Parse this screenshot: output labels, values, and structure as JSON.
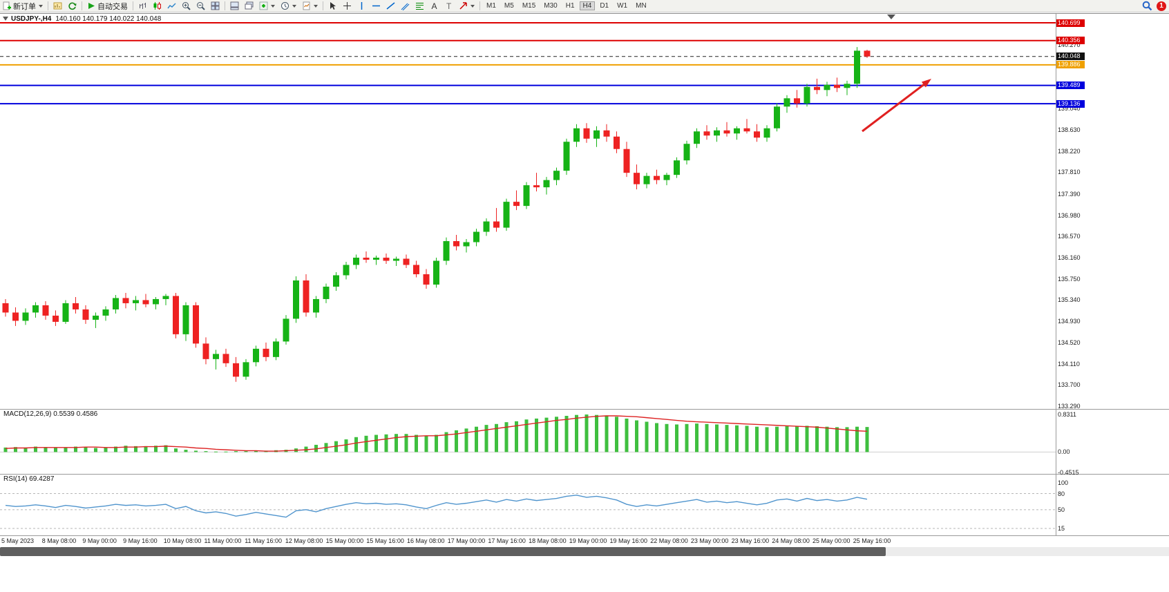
{
  "toolbar": {
    "new_order_label": "新订单",
    "auto_trading_label": "自动交易",
    "timeframes": [
      "M1",
      "M5",
      "M15",
      "M30",
      "H1",
      "H4",
      "D1",
      "W1",
      "MN"
    ],
    "active_timeframe": "H4",
    "notification_count": "1",
    "icon_names": [
      "new-order-icon",
      "new-chart-icon",
      "refresh-icon",
      "auto-trading-icon",
      "bar-chart-icon",
      "candlestick-chart-icon",
      "line-chart-icon",
      "zoom-in-icon",
      "zoom-out-icon",
      "tile-windows-icon",
      "arrange-windows-icon",
      "cascade-windows-icon",
      "indicators-icon",
      "periods-icon",
      "templates-icon",
      "cursor-icon",
      "crosshair-icon",
      "vertical-line-icon",
      "horizontal-line-icon",
      "trendline-icon",
      "channel-icon",
      "fibonacci-icon",
      "text-icon",
      "label-icon",
      "arrow-tool-icon",
      "search-icon",
      "notification-badge"
    ]
  },
  "chart": {
    "symbol_period": "USDJPY-,H4",
    "ohlc_text": "140.160 140.179 140.022 140.048",
    "price_axis_labels": [
      "140.270",
      "139.040",
      "138.630",
      "138.220",
      "137.810",
      "137.390",
      "136.980",
      "136.570",
      "136.160",
      "135.750",
      "135.340",
      "134.930",
      "134.520",
      "134.110",
      "133.700",
      "133.290"
    ],
    "level_lines": [
      {
        "price": "140.699",
        "color": "#dd0000",
        "style": "solid"
      },
      {
        "price": "140.356",
        "color": "#dd0000",
        "style": "solid"
      },
      {
        "price": "140.048",
        "color": "#222222",
        "style": "dashed",
        "role": "current-price"
      },
      {
        "price": "139.886",
        "color": "#efa000",
        "style": "solid"
      },
      {
        "price": "139.489",
        "color": "#0000dd",
        "style": "solid"
      },
      {
        "price": "139.136",
        "color": "#0000dd",
        "style": "solid"
      }
    ],
    "colors": {
      "up": "#16b316",
      "down": "#ee2222",
      "background": "#ffffff",
      "axis_text": "#1a1a1a"
    },
    "candles": [
      [
        135.28,
        135.36,
        135.02,
        135.1
      ],
      [
        135.1,
        135.2,
        134.84,
        134.94
      ],
      [
        134.94,
        135.18,
        134.86,
        135.1
      ],
      [
        135.1,
        135.3,
        135.0,
        135.24
      ],
      [
        135.24,
        135.32,
        134.96,
        135.04
      ],
      [
        135.04,
        135.14,
        134.84,
        134.92
      ],
      [
        134.92,
        135.34,
        134.88,
        135.28
      ],
      [
        135.28,
        135.4,
        135.08,
        135.16
      ],
      [
        135.16,
        135.24,
        134.88,
        134.96
      ],
      [
        134.96,
        135.1,
        134.8,
        135.04
      ],
      [
        135.04,
        135.22,
        134.94,
        135.16
      ],
      [
        135.16,
        135.44,
        135.08,
        135.38
      ],
      [
        135.38,
        135.48,
        135.18,
        135.28
      ],
      [
        135.28,
        135.42,
        135.14,
        135.34
      ],
      [
        135.34,
        135.46,
        135.2,
        135.26
      ],
      [
        135.26,
        135.4,
        135.16,
        135.36
      ],
      [
        135.36,
        135.46,
        135.24,
        135.42
      ],
      [
        135.42,
        135.48,
        134.6,
        134.68
      ],
      [
        134.68,
        135.3,
        134.55,
        135.24
      ],
      [
        135.24,
        135.3,
        134.42,
        134.5
      ],
      [
        134.5,
        134.62,
        134.1,
        134.2
      ],
      [
        134.2,
        134.38,
        134.0,
        134.3
      ],
      [
        134.3,
        134.4,
        134.05,
        134.12
      ],
      [
        134.12,
        134.24,
        133.76,
        133.86
      ],
      [
        133.86,
        134.2,
        133.8,
        134.14
      ],
      [
        134.14,
        134.46,
        134.06,
        134.4
      ],
      [
        134.4,
        134.52,
        134.16,
        134.24
      ],
      [
        134.24,
        134.6,
        134.18,
        134.54
      ],
      [
        134.54,
        135.05,
        134.48,
        134.98
      ],
      [
        134.98,
        135.8,
        134.9,
        135.72
      ],
      [
        135.72,
        135.84,
        135.02,
        135.1
      ],
      [
        135.1,
        135.42,
        135.0,
        135.36
      ],
      [
        135.36,
        135.66,
        135.28,
        135.6
      ],
      [
        135.6,
        135.88,
        135.52,
        135.82
      ],
      [
        135.82,
        136.08,
        135.74,
        136.02
      ],
      [
        136.02,
        136.22,
        135.94,
        136.16
      ],
      [
        136.16,
        136.28,
        136.06,
        136.12
      ],
      [
        136.12,
        136.2,
        136.02,
        136.16
      ],
      [
        136.16,
        136.24,
        136.04,
        136.1
      ],
      [
        136.1,
        136.18,
        136.0,
        136.14
      ],
      [
        136.14,
        136.22,
        135.96,
        136.02
      ],
      [
        136.02,
        136.1,
        135.78,
        135.84
      ],
      [
        135.84,
        135.94,
        135.56,
        135.64
      ],
      [
        135.64,
        136.16,
        135.58,
        136.1
      ],
      [
        136.1,
        136.55,
        136.02,
        136.48
      ],
      [
        136.48,
        136.6,
        136.3,
        136.38
      ],
      [
        136.38,
        136.52,
        136.26,
        136.46
      ],
      [
        136.46,
        136.72,
        136.38,
        136.66
      ],
      [
        136.66,
        136.92,
        136.58,
        136.86
      ],
      [
        136.86,
        137.12,
        136.66,
        136.74
      ],
      [
        136.74,
        137.3,
        136.68,
        137.24
      ],
      [
        137.24,
        137.46,
        137.08,
        137.16
      ],
      [
        137.16,
        137.62,
        137.1,
        137.56
      ],
      [
        137.56,
        137.8,
        137.44,
        137.52
      ],
      [
        137.52,
        137.72,
        137.38,
        137.66
      ],
      [
        137.66,
        137.9,
        137.56,
        137.84
      ],
      [
        137.84,
        138.46,
        137.76,
        138.4
      ],
      [
        138.4,
        138.74,
        138.3,
        138.66
      ],
      [
        138.66,
        138.76,
        138.38,
        138.46
      ],
      [
        138.46,
        138.7,
        138.3,
        138.62
      ],
      [
        138.62,
        138.74,
        138.4,
        138.5
      ],
      [
        138.5,
        138.6,
        138.18,
        138.26
      ],
      [
        138.26,
        138.4,
        137.72,
        137.8
      ],
      [
        137.8,
        137.96,
        137.48,
        137.58
      ],
      [
        137.58,
        137.8,
        137.5,
        137.74
      ],
      [
        137.74,
        137.86,
        137.58,
        137.66
      ],
      [
        137.66,
        137.8,
        137.56,
        137.76
      ],
      [
        137.76,
        138.1,
        137.7,
        138.04
      ],
      [
        138.04,
        138.42,
        137.96,
        138.36
      ],
      [
        138.36,
        138.66,
        138.28,
        138.6
      ],
      [
        138.6,
        138.72,
        138.44,
        138.52
      ],
      [
        138.52,
        138.68,
        138.4,
        138.62
      ],
      [
        138.62,
        138.78,
        138.5,
        138.56
      ],
      [
        138.56,
        138.7,
        138.44,
        138.66
      ],
      [
        138.66,
        138.84,
        138.56,
        138.6
      ],
      [
        138.6,
        138.74,
        138.4,
        138.48
      ],
      [
        138.48,
        138.72,
        138.4,
        138.66
      ],
      [
        138.66,
        139.14,
        138.6,
        139.08
      ],
      [
        139.08,
        139.3,
        138.96,
        139.24
      ],
      [
        139.24,
        139.4,
        139.06,
        139.14
      ],
      [
        139.14,
        139.52,
        139.08,
        139.46
      ],
      [
        139.46,
        139.62,
        139.32,
        139.4
      ],
      [
        139.4,
        139.56,
        139.28,
        139.5
      ],
      [
        139.5,
        139.64,
        139.36,
        139.44
      ],
      [
        139.44,
        139.58,
        139.3,
        139.52
      ],
      [
        139.52,
        140.23,
        139.44,
        140.16
      ],
      [
        140.16,
        140.179,
        140.022,
        140.048
      ]
    ]
  },
  "macd": {
    "title": "MACD(12,26,9) 0.5539 0.4586",
    "axis_labels": [
      "0.8311",
      "0.00",
      "-0.4515"
    ],
    "histogram_color": "#3fbf3f",
    "signal_color": "#dd2222",
    "histogram": [
      0.1,
      0.11,
      0.1,
      0.12,
      0.11,
      0.09,
      0.1,
      0.12,
      0.11,
      0.09,
      0.1,
      0.12,
      0.14,
      0.13,
      0.13,
      0.14,
      0.15,
      0.08,
      0.05,
      0.03,
      0.02,
      0.01,
      0.01,
      0.02,
      0.02,
      0.03,
      0.03,
      0.04,
      0.05,
      0.08,
      0.12,
      0.16,
      0.2,
      0.24,
      0.28,
      0.33,
      0.36,
      0.38,
      0.39,
      0.4,
      0.4,
      0.38,
      0.36,
      0.38,
      0.44,
      0.48,
      0.52,
      0.56,
      0.6,
      0.62,
      0.66,
      0.68,
      0.72,
      0.74,
      0.76,
      0.78,
      0.8,
      0.82,
      0.83,
      0.82,
      0.81,
      0.78,
      0.74,
      0.7,
      0.67,
      0.64,
      0.62,
      0.61,
      0.62,
      0.63,
      0.62,
      0.61,
      0.6,
      0.59,
      0.58,
      0.56,
      0.55,
      0.56,
      0.57,
      0.57,
      0.58,
      0.57,
      0.56,
      0.55,
      0.55,
      0.56,
      0.5539
    ],
    "signal": [
      0.08,
      0.09,
      0.09,
      0.1,
      0.1,
      0.1,
      0.1,
      0.1,
      0.11,
      0.11,
      0.1,
      0.1,
      0.11,
      0.11,
      0.12,
      0.12,
      0.13,
      0.12,
      0.11,
      0.09,
      0.08,
      0.06,
      0.05,
      0.04,
      0.03,
      0.03,
      0.02,
      0.02,
      0.03,
      0.04,
      0.05,
      0.07,
      0.1,
      0.13,
      0.16,
      0.2,
      0.23,
      0.26,
      0.29,
      0.32,
      0.34,
      0.35,
      0.36,
      0.36,
      0.38,
      0.4,
      0.43,
      0.46,
      0.49,
      0.52,
      0.55,
      0.58,
      0.61,
      0.64,
      0.67,
      0.7,
      0.72,
      0.75,
      0.77,
      0.79,
      0.8,
      0.8,
      0.79,
      0.78,
      0.76,
      0.74,
      0.72,
      0.7,
      0.68,
      0.67,
      0.66,
      0.65,
      0.64,
      0.63,
      0.62,
      0.61,
      0.6,
      0.59,
      0.58,
      0.57,
      0.56,
      0.55,
      0.53,
      0.51,
      0.49,
      0.47,
      0.4586
    ]
  },
  "rsi": {
    "title": "RSI(14) 69.4287",
    "axis_labels": [
      "100",
      "80",
      "50",
      "15"
    ],
    "levels": [
      80,
      50,
      15
    ],
    "line_color": "#4f94cd",
    "values": [
      58,
      56,
      57,
      59,
      57,
      54,
      58,
      56,
      53,
      55,
      57,
      60,
      58,
      59,
      57,
      58,
      60,
      52,
      56,
      48,
      44,
      46,
      43,
      38,
      41,
      45,
      42,
      39,
      36,
      48,
      50,
      46,
      52,
      56,
      60,
      63,
      61,
      62,
      60,
      61,
      59,
      55,
      52,
      58,
      63,
      60,
      62,
      65,
      68,
      64,
      69,
      66,
      70,
      67,
      69,
      71,
      75,
      77,
      73,
      75,
      72,
      68,
      60,
      56,
      59,
      57,
      60,
      63,
      66,
      69,
      64,
      66,
      63,
      65,
      62,
      59,
      62,
      68,
      70,
      66,
      71,
      67,
      69,
      66,
      68,
      73,
      69.4287
    ]
  },
  "time_axis": {
    "labels": [
      "5 May 2023",
      "8 May 08:00",
      "9 May 00:00",
      "9 May 16:00",
      "10 May 08:00",
      "11 May 00:00",
      "11 May 16:00",
      "12 May 08:00",
      "15 May 00:00",
      "15 May 16:00",
      "16 May 08:00",
      "17 May 00:00",
      "17 May 16:00",
      "18 May 08:00",
      "19 May 00:00",
      "19 May 16:00",
      "22 May 08:00",
      "23 May 00:00",
      "23 May 16:00",
      "24 May 08:00",
      "25 May 00:00",
      "25 May 16:00"
    ]
  },
  "annotation_arrow": {
    "color": "#e02020"
  }
}
